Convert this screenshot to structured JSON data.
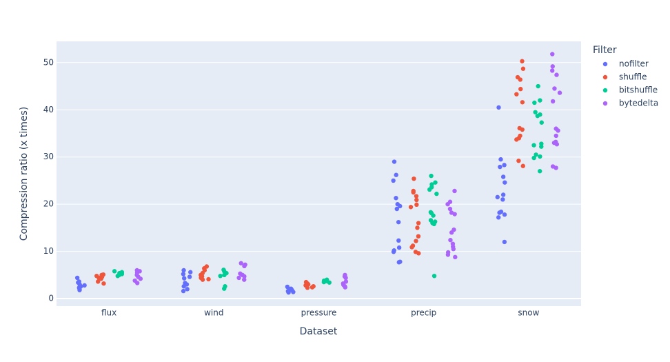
{
  "chart_data": {
    "type": "strip",
    "x_label": "Dataset",
    "y_label": "Compression ratio (x times)",
    "legend_title": "Filter",
    "categories": [
      "flux",
      "wind",
      "pressure",
      "precip",
      "snow"
    ],
    "ylim": [
      -1.6,
      54.5
    ],
    "yticks": [
      0,
      10,
      20,
      30,
      40,
      50
    ],
    "grid": true,
    "legend_position": "right",
    "series": [
      {
        "name": "nofilter",
        "color": "#636efa",
        "values": [
          [
            4.4,
            3.6,
            3.4,
            3.0,
            2.6,
            2.3,
            2.0,
            1.8,
            2.8
          ],
          [
            6.0,
            5.6,
            4.6,
            4.3,
            3.3,
            3.0,
            2.6,
            2.0,
            1.6,
            5.2
          ],
          [
            2.5,
            2.1,
            1.8,
            1.6,
            1.4,
            1.3,
            1.5,
            2.0
          ],
          [
            29.0,
            26.2,
            25.0,
            21.3,
            20.0,
            19.6,
            19.0,
            16.2,
            12.3,
            10.8,
            10.2,
            9.9,
            7.8,
            7.7
          ],
          [
            40.5,
            29.5,
            28.3,
            27.9,
            25.8,
            24.6,
            22.0,
            21.5,
            21.0,
            18.4,
            18.2,
            17.8,
            17.2,
            12.0
          ]
        ]
      },
      {
        "name": "shuffle",
        "color": "#ef553b",
        "values": [
          [
            5.1,
            5.0,
            4.8,
            4.6,
            4.4,
            4.2,
            3.6,
            3.2
          ],
          [
            6.8,
            6.4,
            6.0,
            5.4,
            5.0,
            4.7,
            4.4,
            4.1,
            4.0
          ],
          [
            3.5,
            3.2,
            3.0,
            2.8,
            2.6,
            2.4,
            2.3
          ],
          [
            25.4,
            22.8,
            22.5,
            21.7,
            20.9,
            19.9,
            19.4,
            16.0,
            15.0,
            13.2,
            12.2,
            11.2,
            10.9,
            9.9,
            9.6
          ],
          [
            50.3,
            48.7,
            46.9,
            46.4,
            44.4,
            43.3,
            41.6,
            36.1,
            35.8,
            34.5,
            34.0,
            33.7,
            29.2,
            28.1
          ]
        ]
      },
      {
        "name": "bitshuffle",
        "color": "#00cc96",
        "values": [
          [
            5.8,
            5.6,
            5.4,
            5.2,
            5.0,
            4.8
          ],
          [
            6.1,
            5.8,
            5.4,
            5.0,
            4.8,
            2.6,
            2.1
          ],
          [
            4.0,
            3.8,
            3.7,
            3.5,
            3.4
          ],
          [
            26.0,
            24.6,
            24.2,
            23.6,
            23.1,
            22.2,
            18.3,
            18.1,
            17.6,
            16.6,
            16.3,
            16.0,
            15.8,
            4.8
          ],
          [
            45.0,
            42.0,
            41.5,
            39.5,
            39.0,
            38.7,
            37.3,
            32.8,
            32.5,
            32.2,
            30.5,
            30.1,
            29.8,
            27.0
          ]
        ]
      },
      {
        "name": "bytedelta",
        "color": "#ab63fa",
        "values": [
          [
            6.0,
            5.8,
            5.5,
            5.0,
            4.6,
            4.2,
            3.8,
            3.3
          ],
          [
            7.5,
            7.2,
            6.9,
            5.3,
            5.0,
            4.7,
            4.4,
            4.0
          ],
          [
            5.0,
            4.7,
            4.4,
            3.6,
            3.2,
            2.9,
            2.6,
            2.4
          ],
          [
            22.8,
            20.5,
            20.0,
            19.0,
            18.2,
            17.9,
            14.6,
            14.0,
            12.4,
            11.6,
            11.0,
            10.5,
            9.8,
            9.3,
            8.8
          ],
          [
            51.8,
            49.2,
            48.3,
            47.4,
            44.5,
            43.6,
            41.8,
            36.0,
            35.6,
            34.5,
            33.2,
            33.0,
            32.7,
            28.0,
            27.7
          ]
        ]
      }
    ]
  }
}
